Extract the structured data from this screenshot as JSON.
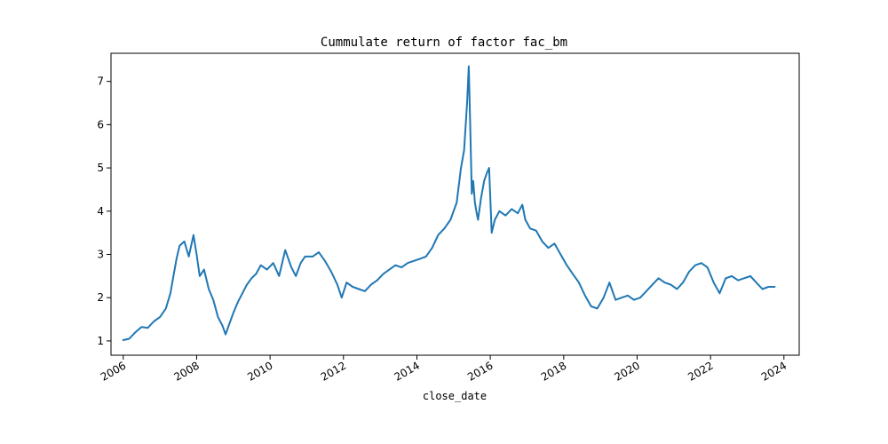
{
  "chart_data": {
    "type": "line",
    "title": "Cummulate return of factor fac_bm",
    "xlabel": "close_date",
    "ylabel": "",
    "x_axis_type": "date",
    "xlim": [
      "2005-09-01",
      "2024-06-01"
    ],
    "ylim": [
      0.67,
      7.65
    ],
    "grid": false,
    "legend": "none",
    "line_color": "#1f77b4",
    "x_ticks": [
      {
        "value": "2006-01-01",
        "label": "2006"
      },
      {
        "value": "2008-01-01",
        "label": "2008"
      },
      {
        "value": "2010-01-01",
        "label": "2010"
      },
      {
        "value": "2012-01-01",
        "label": "2012"
      },
      {
        "value": "2014-01-01",
        "label": "2014"
      },
      {
        "value": "2016-01-01",
        "label": "2016"
      },
      {
        "value": "2018-01-01",
        "label": "2018"
      },
      {
        "value": "2020-01-01",
        "label": "2020"
      },
      {
        "value": "2022-01-01",
        "label": "2022"
      },
      {
        "value": "2024-01-01",
        "label": "2024"
      }
    ],
    "y_ticks": [
      {
        "value": 1,
        "label": "1"
      },
      {
        "value": 2,
        "label": "2"
      },
      {
        "value": 3,
        "label": "3"
      },
      {
        "value": 4,
        "label": "4"
      },
      {
        "value": 5,
        "label": "5"
      },
      {
        "value": 6,
        "label": "6"
      },
      {
        "value": 7,
        "label": "7"
      }
    ],
    "series": [
      {
        "x": [
          "2006-01-01",
          "2006-03-01",
          "2006-05-01",
          "2006-07-01",
          "2006-09-01",
          "2006-11-01",
          "2007-01-01",
          "2007-03-01",
          "2007-04-15",
          "2007-05-15",
          "2007-06-15",
          "2007-07-15",
          "2007-09-01",
          "2007-10-15",
          "2007-12-01",
          "2008-01-01",
          "2008-02-01",
          "2008-03-15",
          "2008-05-01",
          "2008-06-15",
          "2008-08-01",
          "2008-09-15",
          "2008-10-15",
          "2008-11-15",
          "2009-01-01",
          "2009-02-15",
          "2009-04-01",
          "2009-05-15",
          "2009-07-01",
          "2009-08-15",
          "2009-10-01",
          "2009-12-01",
          "2010-02-01",
          "2010-04-01",
          "2010-06-01",
          "2010-08-01",
          "2010-09-15",
          "2010-11-01",
          "2010-12-15",
          "2011-03-01",
          "2011-05-01",
          "2011-07-01",
          "2011-09-01",
          "2011-11-01",
          "2011-12-15",
          "2012-02-01",
          "2012-04-01",
          "2012-06-01",
          "2012-08-01",
          "2012-10-01",
          "2012-12-01",
          "2013-02-01",
          "2013-04-01",
          "2013-06-01",
          "2013-08-01",
          "2013-10-01",
          "2013-12-01",
          "2014-02-01",
          "2014-04-01",
          "2014-06-01",
          "2014-08-01",
          "2014-10-01",
          "2014-12-01",
          "2015-02-01",
          "2015-03-15",
          "2015-04-15",
          "2015-05-15",
          "2015-06-01",
          "2015-06-15",
          "2015-07-01",
          "2015-07-15",
          "2015-08-01",
          "2015-08-15",
          "2015-09-01",
          "2015-10-01",
          "2015-11-01",
          "2015-12-01",
          "2015-12-20",
          "2016-01-15",
          "2016-02-15",
          "2016-04-01",
          "2016-06-01",
          "2016-08-01",
          "2016-10-01",
          "2016-11-15",
          "2016-12-15",
          "2017-02-01",
          "2017-04-01",
          "2017-06-01",
          "2017-08-01",
          "2017-10-01",
          "2017-12-01",
          "2018-02-01",
          "2018-04-01",
          "2018-06-01",
          "2018-08-01",
          "2018-10-01",
          "2018-12-01",
          "2019-02-01",
          "2019-04-01",
          "2019-06-01",
          "2019-08-01",
          "2019-10-01",
          "2019-12-01",
          "2020-02-01",
          "2020-04-01",
          "2020-06-01",
          "2020-08-01",
          "2020-10-01",
          "2020-12-01",
          "2021-02-01",
          "2021-04-01",
          "2021-06-01",
          "2021-08-01",
          "2021-10-01",
          "2021-12-01",
          "2022-02-01",
          "2022-04-01",
          "2022-06-01",
          "2022-08-01",
          "2022-10-01",
          "2022-12-01",
          "2023-02-01",
          "2023-04-01",
          "2023-06-01",
          "2023-08-01",
          "2023-10-01"
        ],
        "values": [
          1.02,
          1.05,
          1.2,
          1.32,
          1.3,
          1.45,
          1.55,
          1.75,
          2.1,
          2.5,
          2.9,
          3.2,
          3.3,
          2.95,
          3.45,
          3.0,
          2.5,
          2.65,
          2.2,
          1.95,
          1.55,
          1.35,
          1.15,
          1.35,
          1.65,
          1.9,
          2.1,
          2.3,
          2.45,
          2.55,
          2.75,
          2.65,
          2.8,
          2.5,
          3.1,
          2.7,
          2.5,
          2.8,
          2.95,
          2.95,
          3.05,
          2.85,
          2.6,
          2.3,
          2.0,
          2.35,
          2.25,
          2.2,
          2.15,
          2.3,
          2.4,
          2.55,
          2.65,
          2.75,
          2.7,
          2.8,
          2.85,
          2.9,
          2.95,
          3.15,
          3.45,
          3.6,
          3.8,
          4.2,
          5.0,
          5.4,
          6.5,
          7.35,
          6.0,
          4.4,
          4.7,
          4.2,
          4.0,
          3.8,
          4.3,
          4.7,
          4.9,
          5.0,
          3.5,
          3.8,
          4.0,
          3.9,
          4.05,
          3.95,
          4.15,
          3.8,
          3.6,
          3.55,
          3.3,
          3.15,
          3.25,
          3.0,
          2.75,
          2.55,
          2.35,
          2.05,
          1.8,
          1.75,
          2.0,
          2.35,
          1.95,
          2.0,
          2.05,
          1.95,
          2.0,
          2.15,
          2.3,
          2.45,
          2.35,
          2.3,
          2.2,
          2.35,
          2.6,
          2.75,
          2.8,
          2.7,
          2.35,
          2.1,
          2.45,
          2.5,
          2.4,
          2.45,
          2.5,
          2.35,
          2.2,
          2.25,
          2.25
        ]
      }
    ]
  }
}
